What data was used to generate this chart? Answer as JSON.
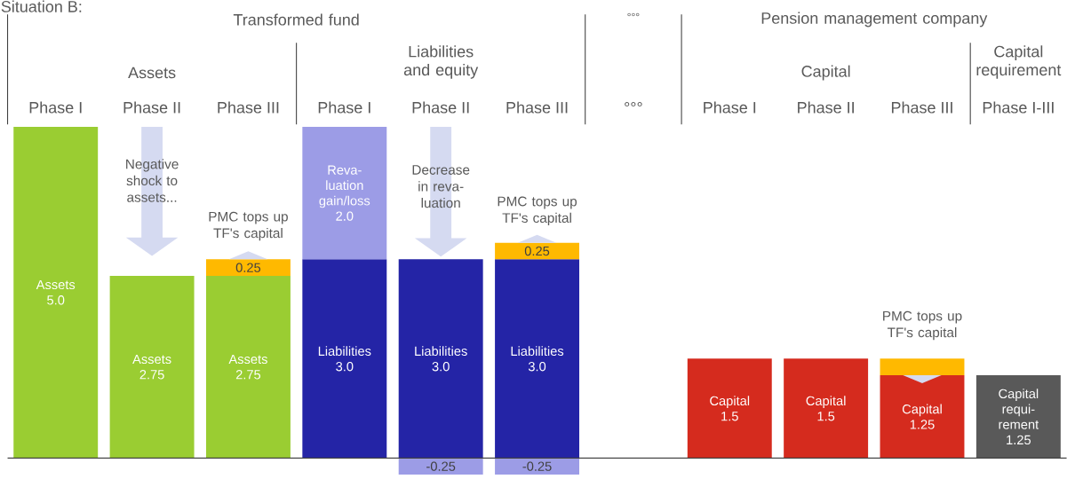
{
  "chart_data": {
    "type": "bar",
    "stacked": true,
    "title": "Situation B:",
    "tick_labels": "x",
    "categories": [
      "Phase I",
      "Phase II",
      "Phase III",
      "Phase I",
      "Phase II",
      "Phase III",
      "°°°",
      "Phase I",
      "Phase II",
      "Phase III",
      "Phase I-III"
    ],
    "ylim": [
      -0.25,
      5.0
    ],
    "series": [
      {
        "name": "Assets",
        "color": "#9acd32",
        "values": [
          5.0,
          2.75,
          2.75,
          null,
          null,
          null,
          null,
          null,
          null,
          null,
          null
        ],
        "value_labels": [
          "5.0",
          "2.75",
          "2.75",
          null,
          null,
          null,
          null,
          null,
          null,
          null,
          null
        ]
      },
      {
        "name": "Liabilities",
        "color": "#2424a6",
        "values": [
          null,
          null,
          null,
          3.0,
          3.0,
          3.0,
          null,
          null,
          null,
          null,
          null
        ],
        "value_labels": [
          null,
          null,
          null,
          "3.0",
          "3.0",
          "3.0",
          null,
          null,
          null,
          null,
          null
        ]
      },
      {
        "name": "Capital",
        "color": "#d52b1e",
        "values": [
          null,
          null,
          null,
          null,
          null,
          null,
          null,
          1.5,
          1.5,
          1.25,
          null
        ],
        "value_labels": [
          null,
          null,
          null,
          null,
          null,
          null,
          null,
          "1.5",
          "1.5",
          "1.25",
          null
        ]
      },
      {
        "name": "Capital requi-rement",
        "color": "#595959",
        "values": [
          null,
          null,
          null,
          null,
          null,
          null,
          null,
          null,
          null,
          null,
          1.25
        ],
        "value_labels": [
          null,
          null,
          null,
          null,
          null,
          null,
          null,
          null,
          null,
          null,
          "1.25"
        ]
      },
      {
        "name": "Reva-luation gain/loss",
        "color": "#9c9ce6",
        "values": [
          null,
          null,
          null,
          2.0,
          -0.25,
          -0.25,
          null,
          null,
          null,
          null,
          null
        ],
        "value_labels": [
          null,
          null,
          null,
          "2.0",
          "-0.25",
          "-0.25",
          null,
          null,
          null,
          null,
          null
        ]
      },
      {
        "color": "#ffb900",
        "values": [
          null,
          null,
          0.25,
          null,
          null,
          0.25,
          null,
          null,
          null,
          0.25,
          null
        ],
        "value_labels": [
          null,
          null,
          "0.25",
          null,
          null,
          "0.25",
          null,
          null,
          null,
          null,
          null
        ]
      }
    ],
    "annotations": [
      "Transformed fund",
      "°°°",
      "Pension management company",
      "Assets",
      "Liabilities and equity",
      "Capital",
      "Capital requirement",
      "Negative shock to assets...",
      "PMC tops up TF's capital",
      "Decrease in reva-luation",
      "PMC tops up TF's capital",
      "PMC tops up TF's capital"
    ]
  }
}
